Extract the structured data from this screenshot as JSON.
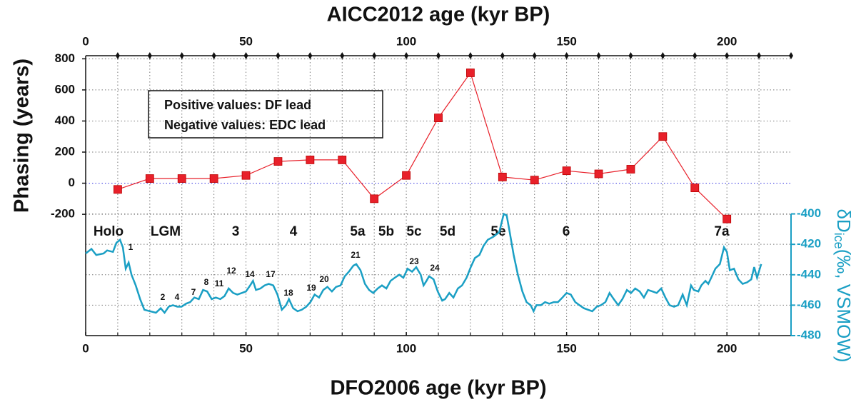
{
  "chart_data": {
    "type": "line",
    "title": "AICC2012 age (kyr BP)",
    "xlabel": "DFO2006 age (kyr BP)",
    "ylabel": "Phasing (years)",
    "y2label": {
      "main": "δD",
      "sub": "ice",
      "rest": "(‰, VSMOW)"
    },
    "xlim": [
      0,
      220
    ],
    "xticks": [
      0,
      50,
      100,
      150,
      200
    ],
    "xminor": [
      10,
      20,
      30,
      40,
      50,
      60,
      70,
      80,
      90,
      100,
      110,
      120,
      130,
      140,
      150,
      160,
      170,
      180,
      190,
      200,
      210
    ],
    "x2lim": [
      0,
      220
    ],
    "x2ticks": [
      0,
      50,
      100,
      150,
      200
    ],
    "x2minor": [
      10,
      20,
      30,
      40,
      50,
      60,
      70,
      80,
      90,
      100,
      110,
      120,
      130,
      140,
      150,
      160,
      170,
      180,
      190,
      200,
      210,
      220
    ],
    "ylim": [
      -980,
      820
    ],
    "yticks": [
      800,
      600,
      400,
      200,
      0,
      -200
    ],
    "y2lim": [
      -480,
      -296
    ],
    "y2ticks": [
      -400,
      -420,
      -440,
      -460,
      -480
    ],
    "grid": true,
    "zero_line_color": "#3030e0",
    "notes": [
      "Positive values: DF lead",
      "Negative values: EDC lead"
    ],
    "stage_labels": [
      "Holo",
      "LGM",
      "3",
      "4",
      "5a",
      "5b",
      "5c",
      "5d",
      "5e",
      "6",
      "7a"
    ],
    "event_labels": [
      "1",
      "2",
      "4",
      "7",
      "8",
      "11",
      "12",
      "14",
      "17",
      "18",
      "19",
      "20",
      "21",
      "23",
      "24"
    ],
    "series": [
      {
        "color": "#e8202a",
        "marker": "square",
        "x": [
          10,
          20,
          30,
          40,
          50,
          60,
          70,
          80,
          90,
          100,
          110,
          120,
          130,
          140,
          150,
          160,
          170,
          180,
          190,
          200
        ],
        "values": [
          -40,
          30,
          30,
          30,
          50,
          140,
          150,
          150,
          -100,
          50,
          420,
          710,
          40,
          20,
          80,
          60,
          90,
          300,
          -30,
          -230
        ]
      },
      {
        "color": "#1a9fc4",
        "axis": "y2",
        "x": [
          0,
          1.8,
          3.3,
          5.6,
          6.7,
          8.5,
          9.6,
          10.7,
          11.6,
          12.5,
          13.4,
          14.3,
          15.6,
          17.0,
          18.3,
          20.1,
          21.9,
          23.4,
          24.6,
          25.9,
          27.2,
          28.6,
          29.9,
          31.3,
          32.6,
          33.9,
          35.3,
          36.6,
          37.9,
          39.3,
          40.6,
          42.0,
          43.3,
          44.6,
          46.0,
          47.3,
          48.7,
          50.0,
          51.3,
          52.2,
          53.1,
          54.5,
          55.8,
          57.1,
          58.5,
          59.8,
          61.2,
          62.5,
          63.4,
          64.7,
          66.1,
          67.4,
          68.8,
          70.1,
          71.4,
          72.8,
          74.1,
          75.4,
          76.8,
          78.1,
          79.5,
          80.8,
          82.1,
          83.5,
          84.4,
          85.7,
          87.1,
          88.4,
          89.7,
          91.1,
          92.4,
          93.8,
          95.1,
          96.4,
          97.8,
          99.1,
          100.4,
          101.8,
          103.1,
          104.5,
          105.4,
          106.3,
          107.1,
          108.5,
          109.8,
          111.2,
          112.1,
          113.4,
          114.7,
          116.1,
          117.4,
          118.8,
          120.1,
          121.4,
          122.8,
          124.1,
          125.4,
          127.2,
          129.0,
          130.4,
          131.3,
          132.1,
          133.5,
          134.8,
          136.2,
          137.5,
          138.8,
          139.7,
          140.6,
          142.0,
          143.3,
          144.6,
          146.0,
          147.3,
          148.7,
          150.0,
          151.3,
          152.7,
          154.0,
          155.4,
          156.7,
          158.0,
          159.4,
          160.7,
          162.1,
          163.4,
          164.7,
          166.1,
          167.4,
          168.8,
          170.1,
          171.4,
          172.8,
          174.1,
          175.4,
          176.8,
          178.1,
          179.5,
          180.8,
          182.1,
          183.5,
          184.8,
          186.2,
          187.5,
          188.8,
          189.7,
          191.1,
          192.0,
          193.3,
          194.2,
          195.1,
          196.4,
          197.8,
          199.1,
          200.0,
          200.9,
          202.2,
          203.6,
          204.9,
          206.3,
          207.6,
          208.5,
          209.4,
          210.7
        ],
        "values": [
          -426,
          -423,
          -427,
          -426,
          -424,
          -425,
          -419,
          -417,
          -422,
          -436,
          -432,
          -440,
          -447,
          -456,
          -463,
          -464,
          -465,
          -462,
          -465,
          -461,
          -460,
          -461,
          -461,
          -459,
          -458,
          -455,
          -456,
          -450,
          -451,
          -456,
          -455,
          -456,
          -454,
          -449,
          -452,
          -453,
          -452,
          -451,
          -447,
          -444,
          -450,
          -449,
          -447,
          -446,
          -447,
          -453,
          -463,
          -460,
          -456,
          -462,
          -464,
          -463,
          -461,
          -458,
          -453,
          -455,
          -450,
          -448,
          -451,
          -448,
          -447,
          -441,
          -438,
          -434,
          -433,
          -437,
          -446,
          -450,
          -452,
          -449,
          -447,
          -449,
          -444,
          -442,
          -440,
          -442,
          -436,
          -438,
          -435,
          -440,
          -447,
          -444,
          -441,
          -443,
          -451,
          -457,
          -456,
          -452,
          -455,
          -449,
          -447,
          -442,
          -435,
          -429,
          -427,
          -421,
          -417,
          -415,
          -412,
          -400,
          -401,
          -410,
          -427,
          -440,
          -451,
          -458,
          -460,
          -464,
          -460,
          -460,
          -458,
          -459,
          -458,
          -458,
          -455,
          -452,
          -453,
          -458,
          -460,
          -462,
          -463,
          -464,
          -461,
          -460,
          -458,
          -452,
          -456,
          -460,
          -456,
          -450,
          -452,
          -449,
          -451,
          -455,
          -450,
          -451,
          -452,
          -449,
          -455,
          -460,
          -461,
          -460,
          -453,
          -460,
          -447,
          -450,
          -451,
          -447,
          -444,
          -446,
          -442,
          -436,
          -433,
          -422,
          -425,
          -437,
          -436,
          -443,
          -446,
          -445,
          -443,
          -435,
          -442,
          -433
        ]
      }
    ]
  }
}
